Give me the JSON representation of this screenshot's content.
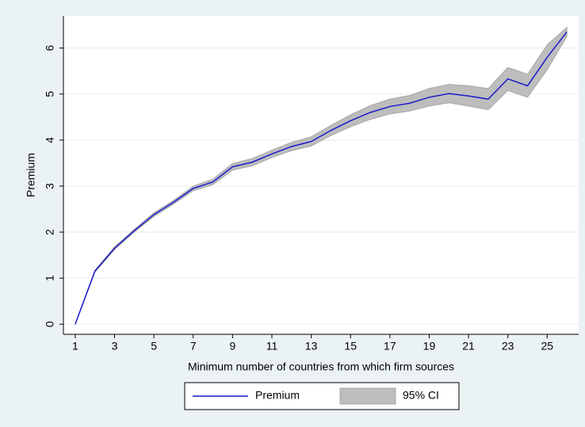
{
  "chart_data": {
    "type": "line",
    "xlabel": "Minimum number of countries from which firm sources",
    "ylabel": "Premium",
    "x": [
      1,
      2,
      3,
      4,
      5,
      6,
      7,
      8,
      9,
      10,
      11,
      12,
      13,
      14,
      15,
      16,
      17,
      18,
      19,
      20,
      21,
      22,
      23,
      24,
      25,
      26
    ],
    "series": [
      {
        "name": "Premium",
        "color": "#1a1acc",
        "values": [
          0,
          1.15,
          1.65,
          2.03,
          2.38,
          2.65,
          2.95,
          3.09,
          3.42,
          3.52,
          3.7,
          3.86,
          3.97,
          4.21,
          4.42,
          4.6,
          4.73,
          4.8,
          4.93,
          5.01,
          4.96,
          4.89,
          5.33,
          5.18,
          5.8,
          6.35
        ]
      }
    ],
    "band": {
      "name": "95% CI",
      "color": "#bdbdbd",
      "lower": [
        0,
        1.13,
        1.62,
        2.0,
        2.34,
        2.61,
        2.9,
        3.03,
        3.35,
        3.44,
        3.62,
        3.77,
        3.87,
        4.1,
        4.29,
        4.45,
        4.57,
        4.63,
        4.74,
        4.81,
        4.74,
        4.66,
        5.08,
        4.93,
        5.53,
        6.25
      ],
      "upper": [
        0,
        1.17,
        1.68,
        2.06,
        2.42,
        2.69,
        3.0,
        3.15,
        3.49,
        3.6,
        3.78,
        3.95,
        4.07,
        4.32,
        4.55,
        4.75,
        4.89,
        4.97,
        5.12,
        5.21,
        5.18,
        5.12,
        5.58,
        5.43,
        6.07,
        6.45
      ]
    },
    "xlim": [
      0.4,
      26.6
    ],
    "ylim": [
      -0.22,
      6.7
    ],
    "xticks": [
      1,
      3,
      5,
      7,
      9,
      11,
      13,
      15,
      17,
      19,
      21,
      23,
      25
    ],
    "yticks": [
      0,
      1,
      2,
      3,
      4,
      5,
      6
    ],
    "grid": true
  }
}
